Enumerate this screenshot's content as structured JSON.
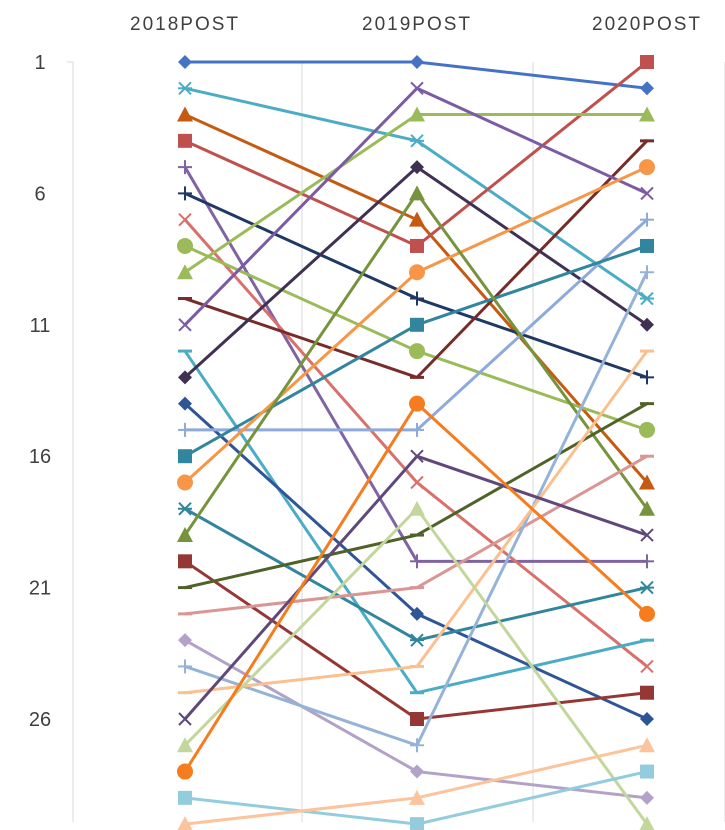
{
  "chart_data": {
    "type": "line",
    "title": "",
    "xlabel": "",
    "ylabel": "",
    "categories": [
      "2018POST",
      "2019POST",
      "2020POST"
    ],
    "y_ticks": [
      1,
      6,
      11,
      16,
      21,
      26
    ],
    "ylim": [
      1,
      30
    ],
    "y_reversed": true,
    "grid": "vertical",
    "legend": "none",
    "series": [
      {
        "values": [
          1,
          1,
          2
        ],
        "color": "#4472C4",
        "marker": "diamond"
      },
      {
        "values": [
          2,
          4,
          10
        ],
        "color": "#4BACC6",
        "marker": "star"
      },
      {
        "values": [
          3,
          7,
          17
        ],
        "color": "#C55A11",
        "marker": "triangle"
      },
      {
        "values": [
          4,
          8,
          1
        ],
        "color": "#C0504D",
        "marker": "square"
      },
      {
        "values": [
          5,
          20,
          20
        ],
        "color": "#8064A2",
        "marker": "plus"
      },
      {
        "values": [
          6,
          10,
          13
        ],
        "color": "#1F3864",
        "marker": "plus"
      },
      {
        "values": [
          7,
          17,
          24
        ],
        "color": "#D9706B",
        "marker": "x"
      },
      {
        "values": [
          8,
          12,
          15
        ],
        "color": "#9BBB59",
        "marker": "circle"
      },
      {
        "values": [
          9,
          3,
          3
        ],
        "color": "#9BBB59",
        "marker": "triangle"
      },
      {
        "values": [
          10,
          13,
          4
        ],
        "color": "#772C2A",
        "marker": "dash"
      },
      {
        "values": [
          11,
          2,
          6
        ],
        "color": "#7B5BA3",
        "marker": "x"
      },
      {
        "values": [
          12,
          25,
          23
        ],
        "color": "#4BACC6",
        "marker": "dash"
      },
      {
        "values": [
          13,
          5,
          11
        ],
        "color": "#403152",
        "marker": "diamond"
      },
      {
        "values": [
          14,
          22,
          26
        ],
        "color": "#2F5597",
        "marker": "diamond"
      },
      {
        "values": [
          15,
          15,
          7
        ],
        "color": "#8EA9DB",
        "marker": "plus"
      },
      {
        "values": [
          16,
          11,
          8
        ],
        "color": "#31859C",
        "marker": "square"
      },
      {
        "values": [
          17,
          9,
          5
        ],
        "color": "#F79646",
        "marker": "circle"
      },
      {
        "values": [
          18,
          23,
          21
        ],
        "color": "#31859C",
        "marker": "star"
      },
      {
        "values": [
          19,
          6,
          18
        ],
        "color": "#77933C",
        "marker": "triangle"
      },
      {
        "values": [
          20,
          26,
          25
        ],
        "color": "#953735",
        "marker": "square"
      },
      {
        "values": [
          21,
          19,
          14
        ],
        "color": "#4F6228",
        "marker": "dash"
      },
      {
        "values": [
          22,
          21,
          16
        ],
        "color": "#DA9694",
        "marker": "dash"
      },
      {
        "values": [
          23,
          28,
          29
        ],
        "color": "#B3A2C7",
        "marker": "diamond"
      },
      {
        "values": [
          24,
          27,
          9
        ],
        "color": "#95B3D7",
        "marker": "plus"
      },
      {
        "values": [
          25,
          24,
          12
        ],
        "color": "#FAC090",
        "marker": "dash"
      },
      {
        "values": [
          26,
          16,
          19
        ],
        "color": "#60497A",
        "marker": "x"
      },
      {
        "values": [
          27,
          18,
          30
        ],
        "color": "#C3D69B",
        "marker": "triangle"
      },
      {
        "values": [
          28,
          14,
          22
        ],
        "color": "#F57C1F",
        "marker": "circle"
      },
      {
        "values": [
          29,
          30,
          28
        ],
        "color": "#93CDDD",
        "marker": "square"
      },
      {
        "values": [
          30,
          29,
          27
        ],
        "color": "#FBC49C",
        "marker": "triangle"
      }
    ]
  }
}
